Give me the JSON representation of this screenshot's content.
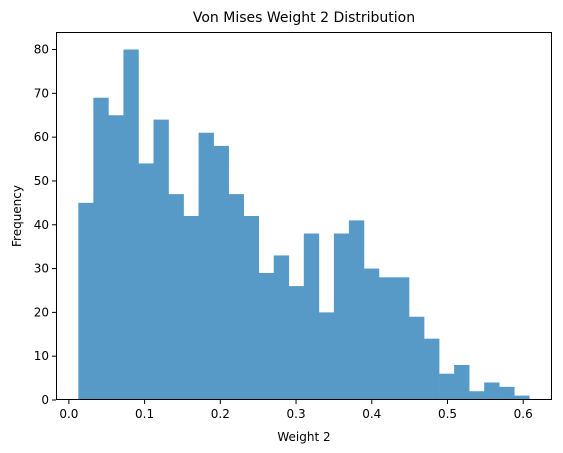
{
  "chart_data": {
    "type": "bar",
    "subtype": "histogram",
    "title": "Von Mises Weight 2 Distribution",
    "xlabel": "Weight 2",
    "ylabel": "Frequency",
    "xlim": [
      -0.017,
      0.638
    ],
    "ylim": [
      0,
      84
    ],
    "x_ticks": [
      0.0,
      0.1,
      0.2,
      0.3,
      0.4,
      0.5,
      0.6
    ],
    "x_tick_labels": [
      "0.0",
      "0.1",
      "0.2",
      "0.3",
      "0.4",
      "0.5",
      "0.6"
    ],
    "y_ticks": [
      0,
      10,
      20,
      30,
      40,
      50,
      60,
      70,
      80
    ],
    "y_tick_labels": [
      "0",
      "10",
      "20",
      "30",
      "40",
      "50",
      "60",
      "70",
      "80"
    ],
    "bin_start": 0.0125,
    "bin_width": 0.01985,
    "values": [
      45,
      69,
      65,
      80,
      54,
      64,
      47,
      42,
      61,
      58,
      47,
      42,
      29,
      33,
      26,
      38,
      20,
      38,
      41,
      30,
      28,
      28,
      19,
      14,
      6,
      8,
      2,
      4,
      3,
      1
    ],
    "bar_color": "#5799c7",
    "grid": false,
    "legend": "none"
  }
}
